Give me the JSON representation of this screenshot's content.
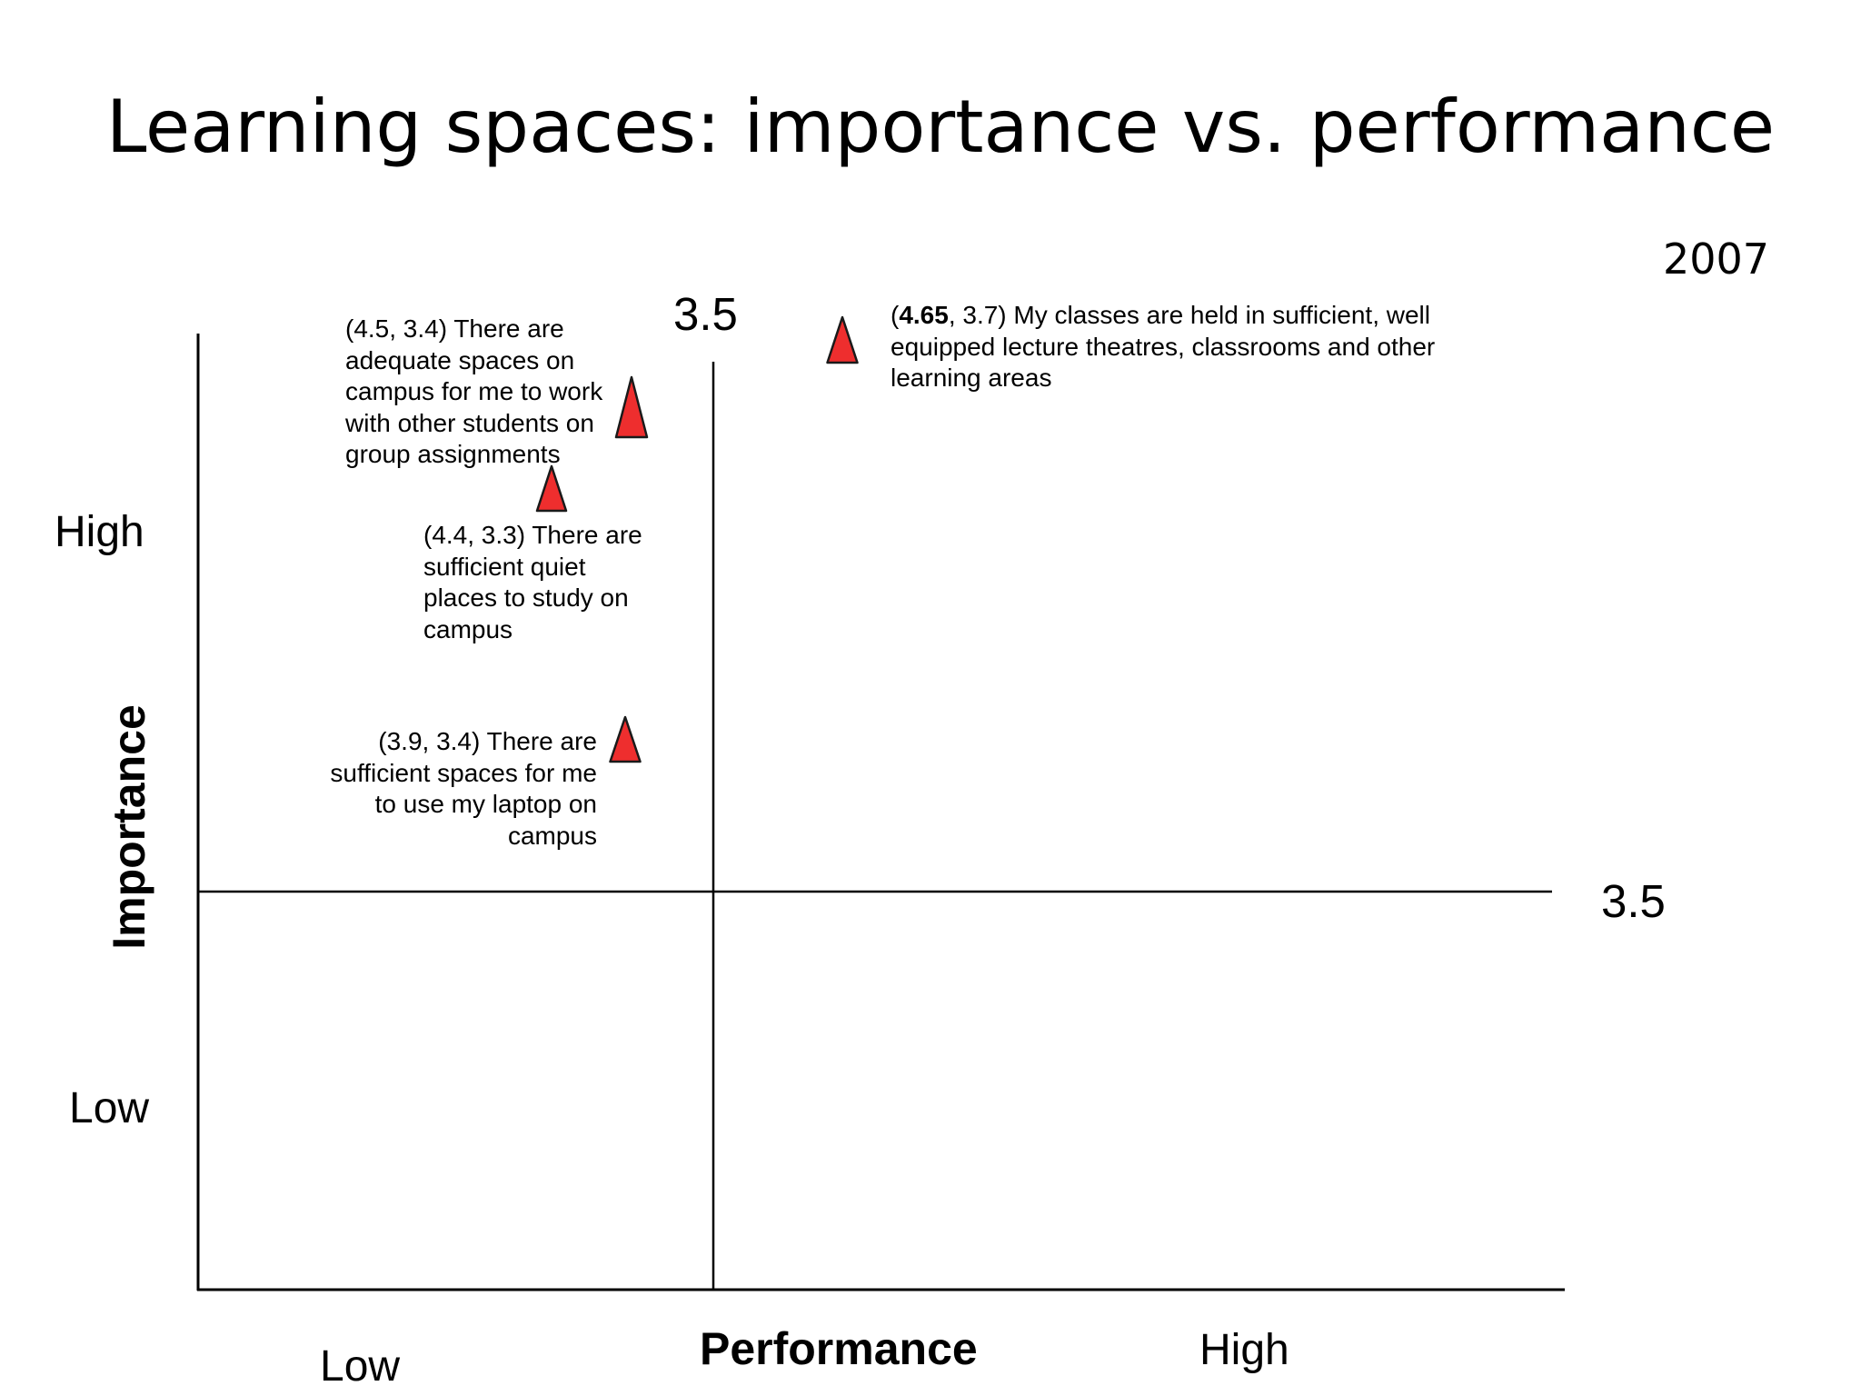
{
  "slide": {
    "title": "Learning spaces: importance vs. performance",
    "year": "2007"
  },
  "chart_data": {
    "type": "scatter",
    "title": "Learning spaces: importance vs. performance",
    "xlabel": "Performance",
    "ylabel": "Importance",
    "x_axis_labels": {
      "low": "Low",
      "high": "High"
    },
    "y_axis_labels": {
      "low": "Low",
      "high": "High"
    },
    "threshold_x_label": "3.5",
    "threshold_y_label": "3.5",
    "marker": {
      "shape": "triangle",
      "fill": "#ee2e2e",
      "stroke": "#1a1a1a"
    },
    "points": [
      {
        "coords": "(4.5, 3.4)",
        "text": "There are adequate spaces on campus for me to work with other students on group assignments",
        "importance": 4.5,
        "performance": 3.4
      },
      {
        "coords": "(4.4, 3.3)",
        "text": "There are sufficient quiet places to study on campus",
        "importance": 4.4,
        "performance": 3.3
      },
      {
        "coords": "(3.9, 3.4)",
        "text": "There are sufficient spaces for me to use my laptop on campus",
        "importance": 3.9,
        "performance": 3.4
      },
      {
        "coords_open": "(",
        "coords_bold": "4.65",
        "coords_rest": ", 3.7)",
        "text": "My classes are held in sufficient, well equipped lecture theatres, classrooms and other learning areas",
        "importance": 4.65,
        "performance": 3.7
      }
    ],
    "annotation_lines": {
      "p1": [
        "(4.5, 3.4) There are",
        "adequate spaces on",
        "campus for me to work",
        "with other students on",
        "group assignments"
      ],
      "p2": [
        "(4.4, 3.3) There are",
        "sufficient quiet",
        "places to study on",
        "campus"
      ],
      "p3": [
        "(3.9, 3.4) There are",
        "sufficient spaces for me",
        "to use my laptop on",
        "campus"
      ],
      "p4_rest": [
        " My classes are held in sufficient, well",
        "equipped lecture theatres, classrooms and other",
        "learning areas"
      ]
    }
  }
}
